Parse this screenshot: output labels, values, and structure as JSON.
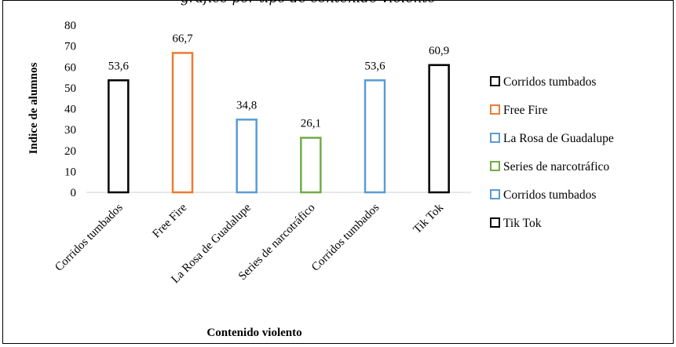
{
  "chart_data": {
    "type": "bar",
    "title_partial": "gráfico por tipo de contenido violento",
    "categories": [
      "Corridos tumbados",
      "Free Fire",
      "La Rosa de Guadalupe",
      "Series de narcotráfico",
      "Corridos tumbados",
      "Tik Tok"
    ],
    "values": [
      53.6,
      66.7,
      34.8,
      26.1,
      53.6,
      60.9
    ],
    "data_labels": [
      "53,6",
      "66,7",
      "34,8",
      "26,1",
      "53,6",
      "60,9"
    ],
    "colors": [
      "#000000",
      "#ED7D31",
      "#5B9BD5",
      "#70AD47",
      "#5B9BD5",
      "#000000"
    ],
    "xlabel": "Contenido violento",
    "ylabel": "Indice de alumnos",
    "ylim": [
      0,
      80
    ],
    "yticks": [
      "0",
      "10",
      "20",
      "30",
      "40",
      "50",
      "60",
      "70",
      "80"
    ],
    "grid": false,
    "legend": {
      "placement": "right",
      "entries": [
        "Corridos tumbados",
        "Free Fire",
        "La Rosa de Guadalupe",
        "Series de narcotráfico",
        "Corridos tumbados",
        "Tik Tok"
      ]
    }
  }
}
